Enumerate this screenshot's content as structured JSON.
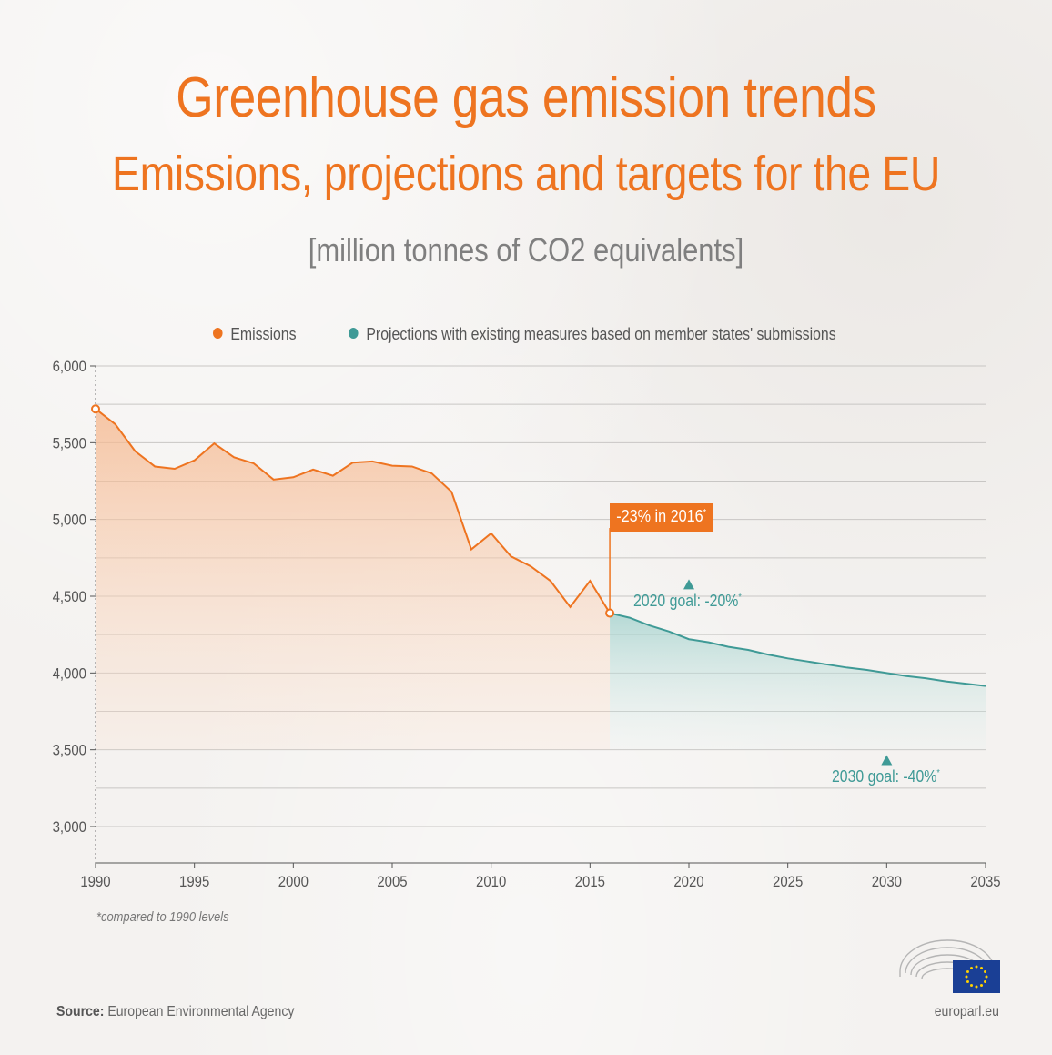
{
  "header": {
    "title": "Greenhouse gas emission trends",
    "subtitle": "Emissions, projections and targets for the EU",
    "unit": "[million tonnes of CO2 equivalents]"
  },
  "legend": {
    "emissions": "Emissions",
    "projections": "Projections with existing measures based on member states' submissions"
  },
  "annotations": {
    "badge_text": "-23% in 2016",
    "goal_2020_text": "2020 goal: -20%",
    "goal_2030_text": "2030 goal: -40%",
    "asterisk": "*"
  },
  "footnote": "*compared to 1990 levels",
  "source_label": "Source:",
  "source_text": " European Environmental Agency",
  "site": "europarl.eu",
  "colors": {
    "emissions": "#ee7420",
    "projections": "#3f9a96",
    "title": "#ee7420",
    "grid": "#c8c6c4",
    "axis_text": "#555555"
  },
  "chart_data": {
    "type": "area",
    "xlim": [
      1990,
      2035
    ],
    "ylim": [
      2900,
      6000
    ],
    "yticks": [
      3000,
      3500,
      4000,
      4500,
      5000,
      5500,
      6000
    ],
    "ytick_labels": [
      "3,000",
      "3,500",
      "4,000",
      "4,500",
      "5,000",
      "5,500",
      "6,000"
    ],
    "xticks": [
      1990,
      1995,
      2000,
      2005,
      2010,
      2015,
      2020,
      2025,
      2030,
      2035
    ],
    "xtick_labels": [
      "1990",
      "1995",
      "2000",
      "2005",
      "2010",
      "2015",
      "2020",
      "2025",
      "2030",
      "2035"
    ],
    "grid": true,
    "legend_position": "top",
    "series": [
      {
        "name": "Emissions",
        "x": [
          1990,
          1991,
          1992,
          1993,
          1994,
          1995,
          1996,
          1997,
          1998,
          1999,
          2000,
          2001,
          2002,
          2003,
          2004,
          2005,
          2006,
          2007,
          2008,
          2009,
          2010,
          2011,
          2012,
          2013,
          2014,
          2015,
          2016
        ],
        "values": [
          5720,
          5620,
          5445,
          5345,
          5330,
          5385,
          5495,
          5405,
          5365,
          5260,
          5275,
          5325,
          5285,
          5370,
          5378,
          5350,
          5345,
          5300,
          5180,
          4805,
          4910,
          4760,
          4695,
          4600,
          4430,
          4600,
          4390
        ]
      },
      {
        "name": "Projections with existing measures based on member states' submissions",
        "x": [
          2016,
          2017,
          2018,
          2019,
          2020,
          2021,
          2022,
          2023,
          2024,
          2025,
          2026,
          2027,
          2028,
          2029,
          2030,
          2031,
          2032,
          2033,
          2034,
          2035
        ],
        "values": [
          4390,
          4360,
          4310,
          4270,
          4220,
          4200,
          4170,
          4150,
          4120,
          4095,
          4075,
          4055,
          4035,
          4020,
          4000,
          3980,
          3965,
          3945,
          3930,
          3915
        ]
      }
    ],
    "goals": [
      {
        "year": 2020,
        "value": 4575,
        "label": "2020 goal: -20%"
      },
      {
        "year": 2030,
        "value": 3430,
        "label": "2030 goal: -40%"
      }
    ],
    "callout": {
      "year": 2016,
      "value": 4390,
      "label": "-23% in 2016"
    }
  }
}
